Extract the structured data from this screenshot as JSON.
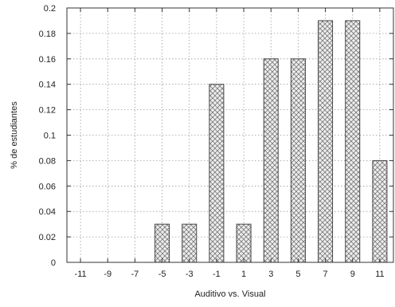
{
  "chart_data": {
    "type": "bar",
    "title": "",
    "xlabel": "Auditivo vs. Visual",
    "ylabel": "% de estudiantes",
    "categories": [
      "-11",
      "-9",
      "-7",
      "-5",
      "-3",
      "-1",
      "1",
      "3",
      "5",
      "7",
      "9",
      "11"
    ],
    "values": [
      0,
      0,
      0,
      0.03,
      0.03,
      0.14,
      0.03,
      0.16,
      0.16,
      0.19,
      0.19,
      0.08
    ],
    "ylim": [
      0,
      0.2
    ],
    "yticks": [
      "0",
      "0.02",
      "0.04",
      "0.06",
      "0.08",
      "0.1",
      "0.12",
      "0.14",
      "0.16",
      "0.18",
      "0.2"
    ],
    "grid": "dotted",
    "bar_pattern": "crosshatch",
    "colors": {
      "bar_fill": "#eeeeee",
      "hatch": "#7a7a7a",
      "bar_stroke": "#444444",
      "axis": "#333333",
      "grid": "#9a9a9a"
    }
  }
}
